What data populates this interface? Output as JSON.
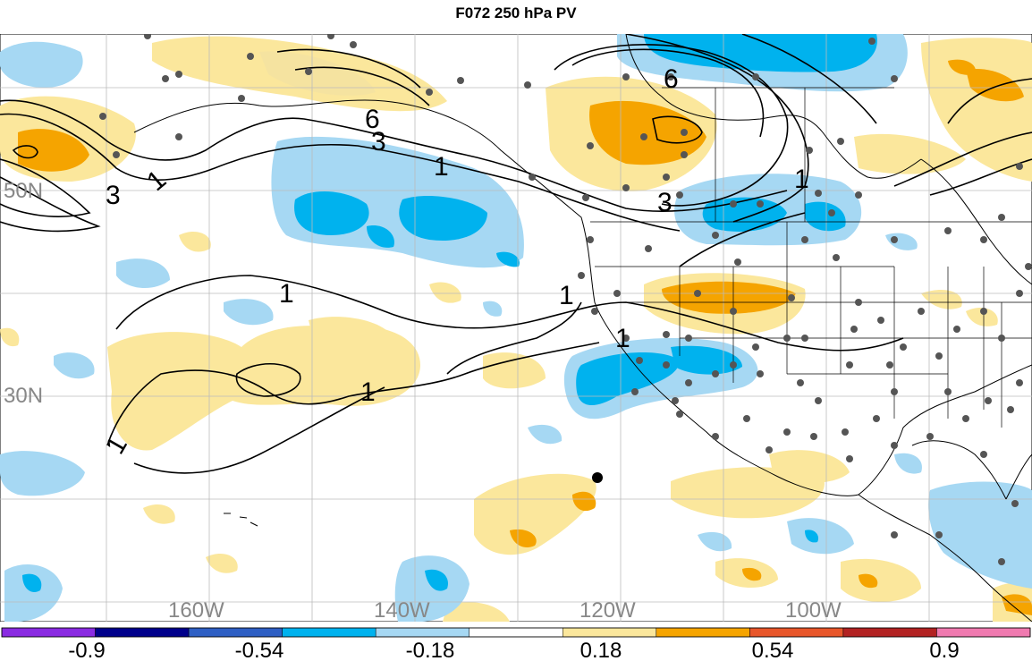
{
  "title": "F072 250 hPa PV",
  "lat_labels": [
    "50N",
    "30N"
  ],
  "lon_labels": [
    "160W",
    "140W",
    "120W",
    "100W"
  ],
  "contour_labels": [
    "1",
    "1",
    "1",
    "1",
    "1",
    "1",
    "1",
    "1",
    "3",
    "3",
    "3",
    "6",
    "6"
  ],
  "colorbar": {
    "labels": [
      "-0.9",
      "-0.54",
      "-0.18",
      "0.18",
      "0.54",
      "0.9"
    ],
    "colors": [
      "#8a2be2",
      "#00008b",
      "#2e5fc4",
      "#00b2ee",
      "#a6d8f3",
      "#ffffff",
      "#fbe79c",
      "#f5a400",
      "#e8562a",
      "#b22222",
      "#f07ab0"
    ]
  }
}
